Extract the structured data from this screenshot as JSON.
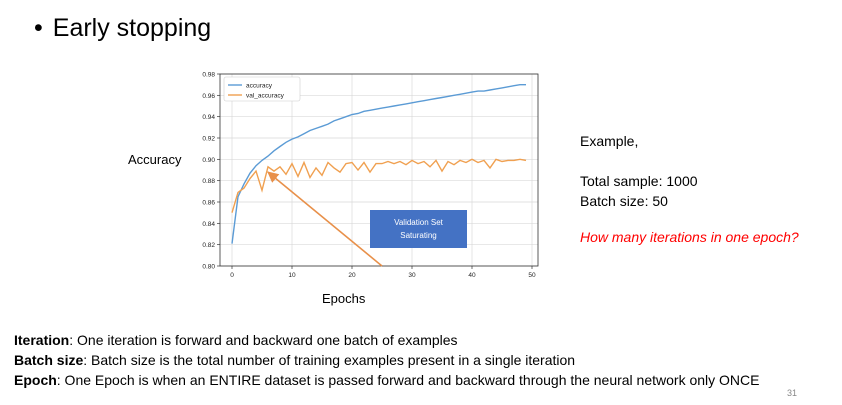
{
  "slide": {
    "bullet": "•",
    "title": "Early stopping",
    "page_number": "31"
  },
  "colors": {
    "accuracy": "#5b9bd5",
    "val_accuracy": "#f0a050",
    "arrow": "#e8904a",
    "annotation_box": "#4472c4",
    "question": "#ff0000"
  },
  "chart_data": {
    "type": "line",
    "xlabel": "Epochs",
    "ylabel": "Accuracy",
    "xlim": [
      -2,
      51
    ],
    "ylim": [
      0.8,
      0.98
    ],
    "xticks": [
      0,
      10,
      20,
      30,
      40,
      50
    ],
    "yticks": [
      0.8,
      0.82,
      0.84,
      0.86,
      0.88,
      0.9,
      0.92,
      0.94,
      0.96,
      0.98
    ],
    "ytick_labels": [
      "0.80",
      "0.82",
      "0.84",
      "0.86",
      "0.88",
      "0.90",
      "0.92",
      "0.94",
      "0.96",
      "0.98"
    ],
    "grid": true,
    "legend_position": "top-left",
    "x": [
      0,
      1,
      2,
      3,
      4,
      5,
      6,
      7,
      8,
      9,
      10,
      11,
      12,
      13,
      14,
      15,
      16,
      17,
      18,
      19,
      20,
      21,
      22,
      23,
      24,
      25,
      26,
      27,
      28,
      29,
      30,
      31,
      32,
      33,
      34,
      35,
      36,
      37,
      38,
      39,
      40,
      41,
      42,
      43,
      44,
      45,
      46,
      47,
      48,
      49
    ],
    "series": [
      {
        "name": "accuracy",
        "values": [
          0.821,
          0.865,
          0.877,
          0.887,
          0.894,
          0.899,
          0.903,
          0.908,
          0.912,
          0.916,
          0.919,
          0.921,
          0.924,
          0.927,
          0.929,
          0.931,
          0.933,
          0.936,
          0.938,
          0.94,
          0.942,
          0.943,
          0.945,
          0.946,
          0.947,
          0.948,
          0.949,
          0.95,
          0.951,
          0.952,
          0.953,
          0.954,
          0.955,
          0.956,
          0.957,
          0.958,
          0.959,
          0.96,
          0.961,
          0.962,
          0.963,
          0.964,
          0.964,
          0.965,
          0.966,
          0.967,
          0.968,
          0.969,
          0.97,
          0.97
        ]
      },
      {
        "name": "val_accuracy",
        "values": [
          0.85,
          0.869,
          0.873,
          0.882,
          0.889,
          0.871,
          0.893,
          0.889,
          0.893,
          0.886,
          0.896,
          0.884,
          0.897,
          0.883,
          0.892,
          0.885,
          0.897,
          0.892,
          0.888,
          0.896,
          0.897,
          0.89,
          0.897,
          0.888,
          0.896,
          0.896,
          0.898,
          0.896,
          0.898,
          0.895,
          0.899,
          0.896,
          0.898,
          0.893,
          0.899,
          0.889,
          0.898,
          0.895,
          0.899,
          0.897,
          0.9,
          0.897,
          0.899,
          0.892,
          0.9,
          0.898,
          0.899,
          0.899,
          0.9,
          0.899
        ]
      }
    ],
    "annotation": {
      "text_line1": "Validation Set",
      "text_line2": "Saturating",
      "arrow_from": [
        25,
        0.8
      ],
      "arrow_to": [
        6,
        0.888
      ]
    }
  },
  "example": {
    "heading": "Example,",
    "total_sample": "Total sample: 1000",
    "batch_size": "Batch size: 50",
    "question": "How many iterations in one epoch?"
  },
  "definitions": [
    {
      "term": "Iteration",
      "text": ": One iteration is forward and backward one batch of examples"
    },
    {
      "term": "Batch size",
      "text": ": Batch size is the total number of training examples present in a single iteration"
    },
    {
      "term": "Epoch",
      "text": ": One Epoch is when an ENTIRE dataset is passed forward and backward through the neural network only ONCE"
    }
  ]
}
